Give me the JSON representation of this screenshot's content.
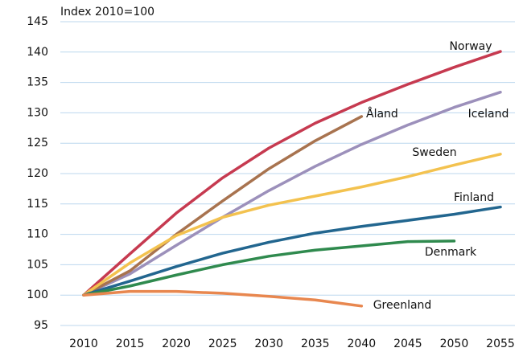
{
  "chart_data": {
    "type": "line",
    "y_axis_label": "Index 2010=100",
    "x": [
      2010,
      2015,
      2020,
      2025,
      2030,
      2035,
      2040,
      2045,
      2050,
      2055
    ],
    "xlim": [
      2010,
      2055
    ],
    "xticks": [
      2010,
      2015,
      2020,
      2025,
      2030,
      2035,
      2040,
      2045,
      2050,
      2055
    ],
    "ylim": [
      95,
      145
    ],
    "yticks": [
      95,
      100,
      105,
      110,
      115,
      120,
      125,
      130,
      135,
      140,
      145
    ],
    "grid": true,
    "series": [
      {
        "name": "Norway",
        "color": "#c63a50",
        "values": [
          100,
          106.8,
          113.5,
          119.3,
          124.2,
          128.3,
          131.7,
          134.7,
          137.5,
          140.1
        ]
      },
      {
        "name": "Iceland",
        "color": "#9c90bb",
        "values": [
          100,
          103.5,
          108.2,
          112.8,
          117.2,
          121.2,
          124.8,
          128.0,
          130.9,
          133.4
        ]
      },
      {
        "name": "Åland",
        "color": "#a8734f",
        "values": [
          100,
          104.0,
          110.0,
          115.5,
          120.8,
          125.4,
          129.4,
          null,
          null,
          null
        ]
      },
      {
        "name": "Sweden",
        "color": "#f3c24f",
        "values": [
          100,
          105.3,
          109.8,
          112.8,
          114.8,
          116.3,
          117.8,
          119.5,
          121.4,
          123.2
        ]
      },
      {
        "name": "Finland",
        "color": "#22668f",
        "values": [
          100,
          102.3,
          104.7,
          106.9,
          108.7,
          110.2,
          111.3,
          112.3,
          113.3,
          114.5
        ]
      },
      {
        "name": "Denmark",
        "color": "#2f8a4e",
        "values": [
          100,
          101.5,
          103.3,
          105.0,
          106.4,
          107.4,
          108.1,
          108.8,
          108.9,
          null
        ]
      },
      {
        "name": "Greenland",
        "color": "#e8874f",
        "values": [
          100,
          100.6,
          100.6,
          100.3,
          99.8,
          99.2,
          98.2,
          null,
          null,
          null
        ]
      }
    ]
  }
}
